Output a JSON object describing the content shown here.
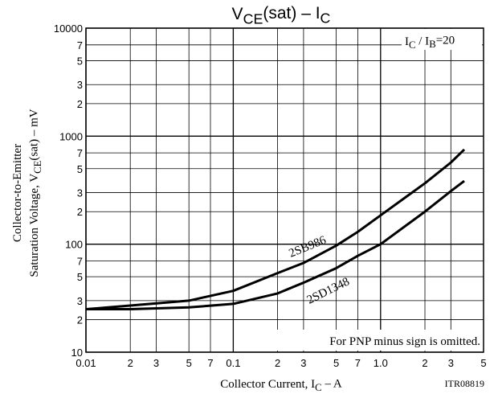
{
  "chart_data": {
    "type": "line",
    "title": [
      "V",
      "CE",
      "(sat)  –  I",
      "C"
    ],
    "x_label": [
      "Collector Current, I",
      "C",
      "  –  A"
    ],
    "y_label": [
      [
        "Collector-to-Emitter"
      ],
      [
        "Saturation Voltage, V",
        "CE",
        "(sat)  –  mV"
      ]
    ],
    "condition": [
      "I",
      "C",
      " / I",
      "B",
      "=20"
    ],
    "note": "For PNP minus sign is omitted.",
    "code": "ITR08819",
    "log_x": true,
    "log_y": true,
    "grid": true,
    "xlim": [
      0.01,
      5
    ],
    "ylim": [
      10,
      10000
    ],
    "xticks": [
      0.01,
      {
        "value": 0.02,
        "label": "2"
      },
      {
        "value": 0.03,
        "label": "3"
      },
      {
        "value": 0.05,
        "label": "5"
      },
      {
        "value": 0.07,
        "label": "7"
      },
      0.1,
      {
        "value": 0.2,
        "label": "2"
      },
      {
        "value": 0.3,
        "label": "3"
      },
      {
        "value": 0.5,
        "label": "5"
      },
      {
        "value": 0.7,
        "label": "7"
      },
      {
        "value": 1,
        "label": "1.0"
      },
      {
        "value": 2,
        "label": "2"
      },
      {
        "value": 3,
        "label": "3"
      },
      {
        "value": 5,
        "label": "5"
      }
    ],
    "yticks": [
      10000,
      {
        "value": 7000,
        "label": "7"
      },
      {
        "value": 5000,
        "label": "5"
      },
      {
        "value": 3000,
        "label": "3"
      },
      {
        "value": 2000,
        "label": "2"
      },
      1000,
      {
        "value": 700,
        "label": "7"
      },
      {
        "value": 500,
        "label": "5"
      },
      {
        "value": 300,
        "label": "3"
      },
      {
        "value": 200,
        "label": "2"
      },
      100,
      {
        "value": 70,
        "label": "7"
      },
      {
        "value": 50,
        "label": "5"
      },
      {
        "value": 30,
        "label": "3"
      },
      {
        "value": 20,
        "label": "2"
      },
      10
    ],
    "x": [
      0.01,
      0.02,
      0.05,
      0.1,
      0.2,
      0.3,
      0.5,
      0.7,
      1,
      2,
      3,
      3.7
    ],
    "series": [
      {
        "name": "2SB986",
        "color": "#000000",
        "values": [
          25,
          27,
          30,
          37,
          54,
          67,
          97,
          130,
          185,
          366,
          570,
          752
        ]
      },
      {
        "name": "2SD1348",
        "color": "#000000",
        "values": [
          25,
          25,
          26,
          28,
          35,
          44,
          60,
          78,
          100,
          200,
          310,
          385
        ]
      }
    ]
  }
}
